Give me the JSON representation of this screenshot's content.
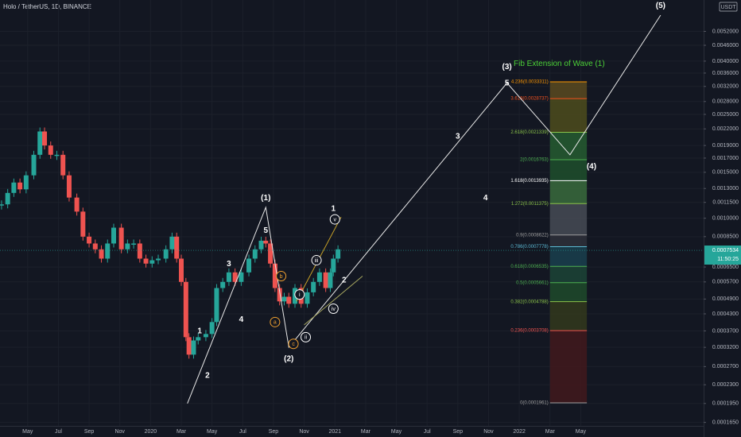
{
  "chart_data": {
    "type": "candlestick",
    "title": "Holo / TetherUS, 1D, BINANCE",
    "y_unit": "USDT",
    "log_scale": true,
    "grid": true,
    "xlim": [
      -1.8,
      44.0
    ],
    "xticks": [
      {
        "value": 0,
        "label": "May"
      },
      {
        "value": 2,
        "label": "Jul"
      },
      {
        "value": 4,
        "label": "Sep"
      },
      {
        "value": 6,
        "label": "Nov"
      },
      {
        "value": 8,
        "label": "2020"
      },
      {
        "value": 10,
        "label": "Mar"
      },
      {
        "value": 12,
        "label": "May"
      },
      {
        "value": 14,
        "label": "Jul"
      },
      {
        "value": 16,
        "label": "Sep"
      },
      {
        "value": 18,
        "label": "Nov"
      },
      {
        "value": 20,
        "label": "2021"
      },
      {
        "value": 22,
        "label": "Mar"
      },
      {
        "value": 24,
        "label": "May"
      },
      {
        "value": 26,
        "label": "Jul"
      },
      {
        "value": 28,
        "label": "Sep"
      },
      {
        "value": 30,
        "label": "Nov"
      },
      {
        "value": 32,
        "label": "2022"
      },
      {
        "value": 34,
        "label": "Mar"
      },
      {
        "value": 36,
        "label": "May"
      }
    ],
    "ylim": [
      0.00016,
      0.00686
    ],
    "yticks": [
      {
        "value": 0.0052,
        "label": "0.0052000"
      },
      {
        "value": 0.0046,
        "label": "0.0046000"
      },
      {
        "value": 0.004,
        "label": "0.0040000"
      },
      {
        "value": 0.0036,
        "label": "0.0036000"
      },
      {
        "value": 0.0032,
        "label": "0.0032000"
      },
      {
        "value": 0.0028,
        "label": "0.0028000"
      },
      {
        "value": 0.0025,
        "label": "0.0025000"
      },
      {
        "value": 0.0022,
        "label": "0.0022000"
      },
      {
        "value": 0.0019,
        "label": "0.0019000"
      },
      {
        "value": 0.0017,
        "label": "0.0017000"
      },
      {
        "value": 0.0015,
        "label": "0.0015000"
      },
      {
        "value": 0.0013,
        "label": "0.0013000"
      },
      {
        "value": 0.00115,
        "label": "0.0011500"
      },
      {
        "value": 0.001,
        "label": "0.0010000"
      },
      {
        "value": 0.00085,
        "label": "0.0008500"
      },
      {
        "value": 0.00065,
        "label": "0.0006500"
      },
      {
        "value": 0.00057,
        "label": "0.0005700"
      },
      {
        "value": 0.00049,
        "label": "0.0004900"
      },
      {
        "value": 0.00043,
        "label": "0.0004300"
      },
      {
        "value": 0.00037,
        "label": "0.0003700"
      },
      {
        "value": 0.00032,
        "label": "0.0003200"
      },
      {
        "value": 0.00027,
        "label": "0.0002700"
      },
      {
        "value": 0.00023,
        "label": "0.0002300"
      },
      {
        "value": 0.000195,
        "label": "0.0001950"
      },
      {
        "value": 0.000165,
        "label": "0.0001650"
      }
    ],
    "price": {
      "up_color": "#26a69a",
      "down_color": "#ef5350",
      "x": [
        -1.7,
        -1.3,
        -0.9,
        -0.5,
        -0.1,
        0.4,
        0.8,
        1.1,
        1.5,
        1.9,
        2.3,
        2.7,
        3.2,
        3.6,
        4.0,
        4.4,
        4.8,
        5.2,
        5.6,
        6.1,
        6.5,
        6.9,
        7.3,
        7.7,
        8.1,
        8.5,
        9.0,
        9.4,
        9.7,
        10.0,
        10.3,
        10.5,
        10.8,
        11.1,
        11.6,
        12.0,
        12.3,
        12.7,
        13.1,
        13.5,
        13.9,
        14.4,
        14.8,
        15.2,
        15.5,
        15.8,
        16.1,
        16.4,
        16.7,
        17.0,
        17.4,
        17.8,
        18.2,
        18.6,
        19.0,
        19.4,
        19.7,
        19.9,
        20.2
      ],
      "values": [
        0.00113,
        0.00125,
        0.00137,
        0.00129,
        0.00146,
        0.00175,
        0.00215,
        0.0019,
        0.00175,
        0.00175,
        0.00146,
        0.0012,
        0.00106,
        0.00085,
        0.0008,
        0.00076,
        0.0007,
        0.0008,
        0.00092,
        0.00076,
        0.0008,
        0.0008,
        0.0007,
        0.00067,
        0.00069,
        0.0007,
        0.00076,
        0.00085,
        0.0007,
        0.00057,
        0.00035,
        0.0003,
        0.00034,
        0.00035,
        0.00036,
        0.0004,
        0.00054,
        0.00057,
        0.00062,
        0.00057,
        0.00062,
        0.0007,
        0.00076,
        0.00082,
        0.0008,
        0.00067,
        0.00054,
        0.00048,
        0.0005,
        0.00047,
        0.00054,
        0.00047,
        0.00052,
        0.00057,
        0.00062,
        0.00054,
        0.00062,
        0.0007,
        0.00076
      ]
    },
    "lines": [
      {
        "color": "#e8e8e8",
        "x": [
          10.4,
          15.5,
          17.0,
          31.2,
          35.3,
          41.2
        ],
        "y": [
          0.000195,
          0.0011,
          0.00032,
          0.0033,
          0.00175,
          0.006
        ]
      },
      {
        "color": "#c9a227",
        "x": [
          17.5,
          20.4
        ],
        "y": [
          0.00048,
          0.00101
        ]
      },
      {
        "color": "#a8a860",
        "x": [
          18.0,
          21.8
        ],
        "y": [
          0.00039,
          0.0006
        ]
      }
    ],
    "annotations": [
      {
        "text": "(1)",
        "x": 15.5,
        "y": 0.0012,
        "color": "#ffffff",
        "circled": false
      },
      {
        "text": "(2)",
        "x": 17.0,
        "y": 0.00029,
        "color": "#ffffff",
        "circled": false
      },
      {
        "text": "(3)",
        "x": 31.2,
        "y": 0.00381,
        "color": "#ffffff",
        "circled": false
      },
      {
        "text": "(4)",
        "x": 36.7,
        "y": 0.00158,
        "color": "#ffffff",
        "circled": false
      },
      {
        "text": "(5)",
        "x": 41.2,
        "y": 0.00653,
        "color": "#ffffff",
        "circled": false
      },
      {
        "text": "5",
        "x": 31.2,
        "y": 0.0033,
        "color": "#ffffff",
        "circled": false
      },
      {
        "text": "3",
        "x": 28.0,
        "y": 0.00206,
        "color": "#ffffff",
        "circled": false
      },
      {
        "text": "4",
        "x": 29.8,
        "y": 0.0012,
        "color": "#ffffff",
        "circled": false
      },
      {
        "text": "1",
        "x": 11.2,
        "y": 0.00037,
        "color": "#ffffff",
        "circled": false
      },
      {
        "text": "2",
        "x": 11.7,
        "y": 0.00025,
        "color": "#ffffff",
        "circled": false
      },
      {
        "text": "3",
        "x": 13.1,
        "y": 0.00067,
        "color": "#ffffff",
        "circled": false
      },
      {
        "text": "4",
        "x": 13.9,
        "y": 0.00041,
        "color": "#ffffff",
        "circled": false
      },
      {
        "text": "5",
        "x": 15.5,
        "y": 0.0009,
        "color": "#ffffff",
        "circled": false
      },
      {
        "text": "1",
        "x": 19.9,
        "y": 0.00109,
        "color": "#ffffff",
        "circled": false
      },
      {
        "text": "2",
        "x": 20.6,
        "y": 0.00058,
        "color": "#ffffff",
        "circled": false
      },
      {
        "text": "a",
        "x": 16.1,
        "y": 0.0004,
        "color": "#f0a030",
        "circled": true
      },
      {
        "text": "b",
        "x": 16.5,
        "y": 0.0006,
        "color": "#f0a030",
        "circled": true
      },
      {
        "text": "c",
        "x": 17.3,
        "y": 0.00033,
        "color": "#f0a030",
        "circled": true
      },
      {
        "text": "i",
        "x": 17.7,
        "y": 0.00051,
        "color": "#ffffff",
        "circled": true
      },
      {
        "text": "ii",
        "x": 18.1,
        "y": 0.00035,
        "color": "#ffffff",
        "circled": true
      },
      {
        "text": "iii",
        "x": 18.8,
        "y": 0.00069,
        "color": "#ffffff",
        "circled": true
      },
      {
        "text": "iv",
        "x": 19.9,
        "y": 0.00045,
        "color": "#ffffff",
        "circled": true
      },
      {
        "text": "v",
        "x": 20.0,
        "y": 0.00099,
        "color": "#ffffff",
        "circled": true
      }
    ],
    "fib": {
      "title": "Fib Extension of Wave (1)",
      "title_x": 34.6,
      "title_y": 0.0039,
      "title_color": "#4cd137",
      "x": [
        34.0,
        36.4
      ],
      "levels": [
        {
          "label": "4.236(0.0033311)",
          "value": 0.0033311,
          "color": "#ff9800",
          "fill": "#5a4a20"
        },
        {
          "label": "3.618(0.0028737)",
          "value": 0.0028737,
          "color": "#f4511e",
          "fill": "#4d4c1c"
        },
        {
          "label": "2.618(0.0021339)",
          "value": 0.0021339,
          "color": "#8bc34a",
          "fill": "#265c30"
        },
        {
          "label": "2(0.0016763)",
          "value": 0.0016763,
          "color": "#4caf50",
          "fill": "#1f4f2c"
        },
        {
          "label": "1.618(0.0013935)",
          "value": 0.0013935,
          "color": "#ffffff",
          "fill": "#3a6b3c"
        },
        {
          "label": "1.272(0.0011375)",
          "value": 0.0011375,
          "color": "#8bc34a",
          "fill": "#474b55"
        },
        {
          "label": "0.9(0.0008622)",
          "value": 0.0008622,
          "color": "#9e9e9e",
          "fill": "#2e3039"
        },
        {
          "label": "0.786(0.0007778)",
          "value": 0.0007778,
          "color": "#5ab9d3",
          "fill": "#1a3f4d"
        },
        {
          "label": "0.618(0.0006535)",
          "value": 0.0006535,
          "color": "#4caf50",
          "fill": "#1c4436"
        },
        {
          "label": "0.5(0.0005661)",
          "value": 0.0005661,
          "color": "#4caf50",
          "fill": "#1e4a2a"
        },
        {
          "label": "0.382(0.0004788)",
          "value": 0.0004788,
          "color": "#8bc34a",
          "fill": "#33381c"
        },
        {
          "label": "0.236(0.0003708)",
          "value": 0.0003708,
          "color": "#ef5350",
          "fill": "#42191c"
        },
        {
          "label": "0(0.0001961)",
          "value": 0.0001961,
          "color": "#9e9e9e"
        }
      ]
    },
    "price_tag": {
      "value": 0.0007534,
      "label": "0.0007534",
      "countdown": "11:50:25",
      "color": "#26a69a"
    }
  }
}
